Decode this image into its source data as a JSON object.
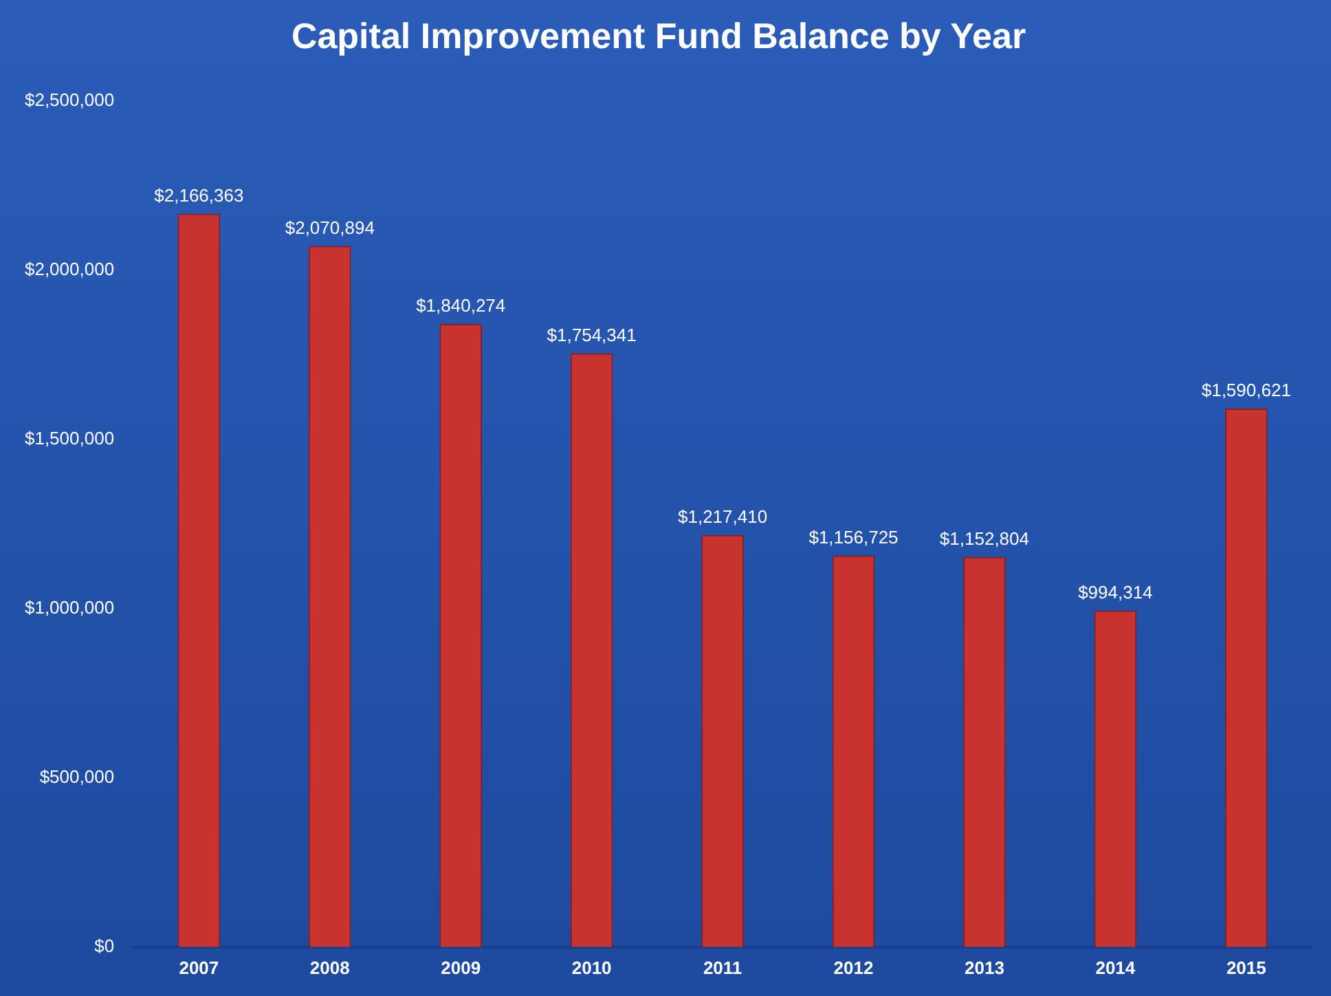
{
  "chart_data": {
    "type": "bar",
    "title": "Capital Improvement Fund Balance by Year",
    "categories": [
      "2007",
      "2008",
      "2009",
      "2010",
      "2011",
      "2012",
      "2013",
      "2014",
      "2015"
    ],
    "values": [
      2166363,
      2070894,
      1840274,
      1754341,
      1217410,
      1156725,
      1152804,
      994314,
      1590621
    ],
    "value_labels": [
      "$2,166,363",
      "$2,070,894",
      "$1,840,274",
      "$1,754,341",
      "$1,217,410",
      "$1,156,725",
      "$1,152,804",
      "$994,314",
      "$1,590,621"
    ],
    "color": "#c83330",
    "ylim": [
      0,
      2500000
    ],
    "yticks": [
      {
        "value": 0,
        "label": "$0"
      },
      {
        "value": 500000,
        "label": "$500,000"
      },
      {
        "value": 1000000,
        "label": "$1,000,000"
      },
      {
        "value": 1500000,
        "label": "$1,500,000"
      },
      {
        "value": 2000000,
        "label": "$2,000,000"
      },
      {
        "value": 2500000,
        "label": "$2,500,000"
      }
    ],
    "grid": false,
    "legend": false
  }
}
